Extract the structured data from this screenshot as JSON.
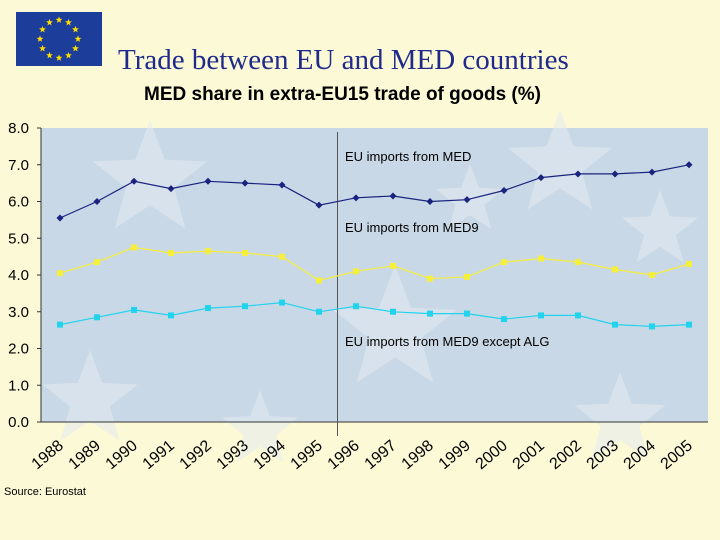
{
  "slide": {
    "title": "Trade between EU and MED countries",
    "source": "Source: Eurostat"
  },
  "colors": {
    "background": "#fbf9d6",
    "plot_background": "#c9d8e6",
    "flag_blue": "#1d3d9a",
    "flag_star": "#ffdd00"
  },
  "chart_data": {
    "type": "line",
    "title": "MED share in extra-EU15 trade of goods (%)",
    "xlabel": "",
    "ylabel": "",
    "ylim": [
      0,
      8
    ],
    "yticks": [
      "0.0",
      "1.0",
      "2.0",
      "3.0",
      "4.0",
      "5.0",
      "6.0",
      "7.0",
      "8.0"
    ],
    "categories": [
      "1988",
      "1989",
      "1990",
      "1991",
      "1992",
      "1993",
      "1994",
      "1995",
      "1996",
      "1997",
      "1998",
      "1999",
      "2000",
      "2001",
      "2002",
      "2003",
      "2004",
      "2005"
    ],
    "grid": false,
    "legend": "inline annotations",
    "series": [
      {
        "name": "EU imports from MED",
        "color": "#1a237e",
        "marker": "diamond",
        "values": [
          5.55,
          6.0,
          6.55,
          6.35,
          6.55,
          6.5,
          6.45,
          5.9,
          6.1,
          6.15,
          6.0,
          6.05,
          6.3,
          6.65,
          6.75,
          6.75,
          6.8,
          7.0
        ]
      },
      {
        "name": "EU imports from MED9",
        "color": "#f5ee3a",
        "marker": "square",
        "values": [
          4.05,
          4.35,
          4.75,
          4.6,
          4.65,
          4.6,
          4.5,
          3.85,
          4.1,
          4.25,
          3.9,
          3.95,
          4.35,
          4.45,
          4.35,
          4.15,
          4.0,
          4.3
        ]
      },
      {
        "name": "EU imports from MED9 except ALG",
        "color": "#22d3ee",
        "marker": "square",
        "values": [
          2.65,
          2.85,
          3.05,
          2.9,
          3.1,
          3.15,
          3.25,
          3.0,
          3.15,
          3.0,
          2.95,
          2.95,
          2.8,
          2.9,
          2.9,
          2.65,
          2.6,
          2.65
        ]
      }
    ]
  }
}
